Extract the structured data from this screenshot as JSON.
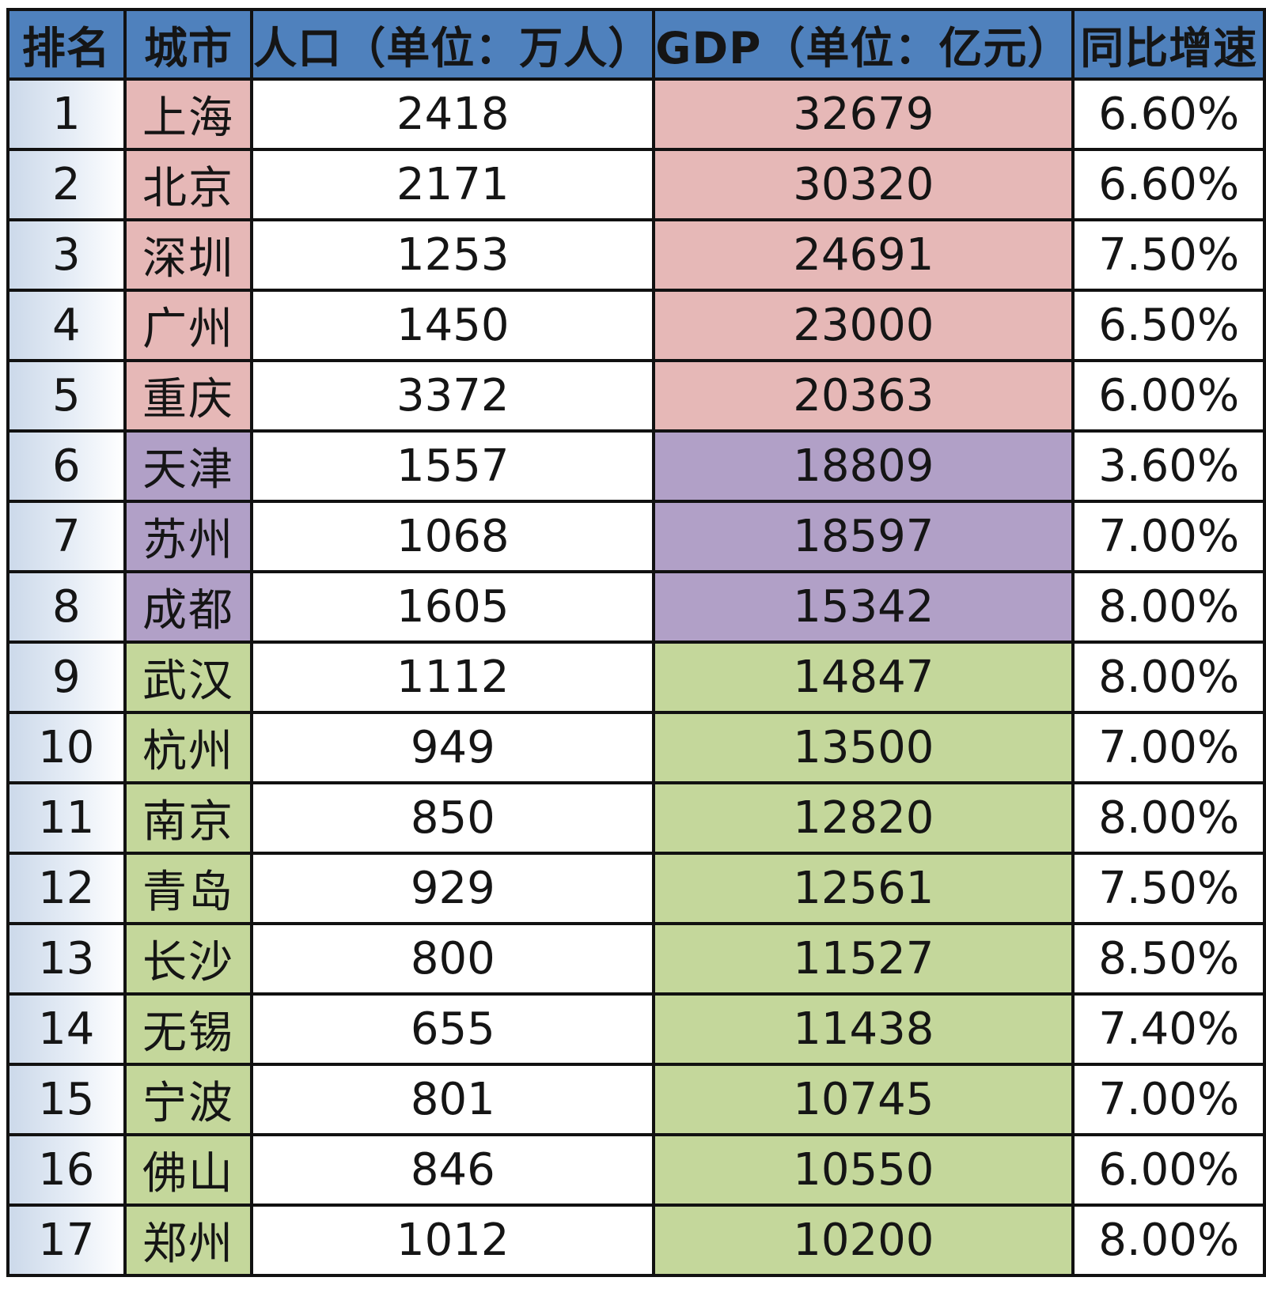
{
  "colors": {
    "header": "#4f81bd",
    "tier_colors": {
      "tier1": "#e6b8b7",
      "tier2": "#b1a0c7",
      "tier3": "#c4d79b"
    }
  },
  "headers": [
    "排名",
    "城市",
    "人口（单位：万人）",
    "GDP（单位：亿元）",
    "同比增速"
  ],
  "rows": [
    {
      "rank": "1",
      "city": "上海",
      "population": "2418",
      "gdp": "32679",
      "growth": "6.60%",
      "tier": "pink"
    },
    {
      "rank": "2",
      "city": "北京",
      "population": "2171",
      "gdp": "30320",
      "growth": "6.60%",
      "tier": "pink"
    },
    {
      "rank": "3",
      "city": "深圳",
      "population": "1253",
      "gdp": "24691",
      "growth": "7.50%",
      "tier": "pink"
    },
    {
      "rank": "4",
      "city": "广州",
      "population": "1450",
      "gdp": "23000",
      "growth": "6.50%",
      "tier": "pink"
    },
    {
      "rank": "5",
      "city": "重庆",
      "population": "3372",
      "gdp": "20363",
      "growth": "6.00%",
      "tier": "pink"
    },
    {
      "rank": "6",
      "city": "天津",
      "population": "1557",
      "gdp": "18809",
      "growth": "3.60%",
      "tier": "purple"
    },
    {
      "rank": "7",
      "city": "苏州",
      "population": "1068",
      "gdp": "18597",
      "growth": "7.00%",
      "tier": "purple"
    },
    {
      "rank": "8",
      "city": "成都",
      "population": "1605",
      "gdp": "15342",
      "growth": "8.00%",
      "tier": "purple"
    },
    {
      "rank": "9",
      "city": "武汉",
      "population": "1112",
      "gdp": "14847",
      "growth": "8.00%",
      "tier": "green"
    },
    {
      "rank": "10",
      "city": "杭州",
      "population": "949",
      "gdp": "13500",
      "growth": "7.00%",
      "tier": "green"
    },
    {
      "rank": "11",
      "city": "南京",
      "population": "850",
      "gdp": "12820",
      "growth": "8.00%",
      "tier": "green"
    },
    {
      "rank": "12",
      "city": "青岛",
      "population": "929",
      "gdp": "12561",
      "growth": "7.50%",
      "tier": "green"
    },
    {
      "rank": "13",
      "city": "长沙",
      "population": "800",
      "gdp": "11527",
      "growth": "8.50%",
      "tier": "green"
    },
    {
      "rank": "14",
      "city": "无锡",
      "population": "655",
      "gdp": "11438",
      "growth": "7.40%",
      "tier": "green"
    },
    {
      "rank": "15",
      "city": "宁波",
      "population": "801",
      "gdp": "10745",
      "growth": "7.00%",
      "tier": "green"
    },
    {
      "rank": "16",
      "city": "佛山",
      "population": "846",
      "gdp": "10550",
      "growth": "6.00%",
      "tier": "green"
    },
    {
      "rank": "17",
      "city": "郑州",
      "population": "1012",
      "gdp": "10200",
      "growth": "8.00%",
      "tier": "green"
    }
  ]
}
